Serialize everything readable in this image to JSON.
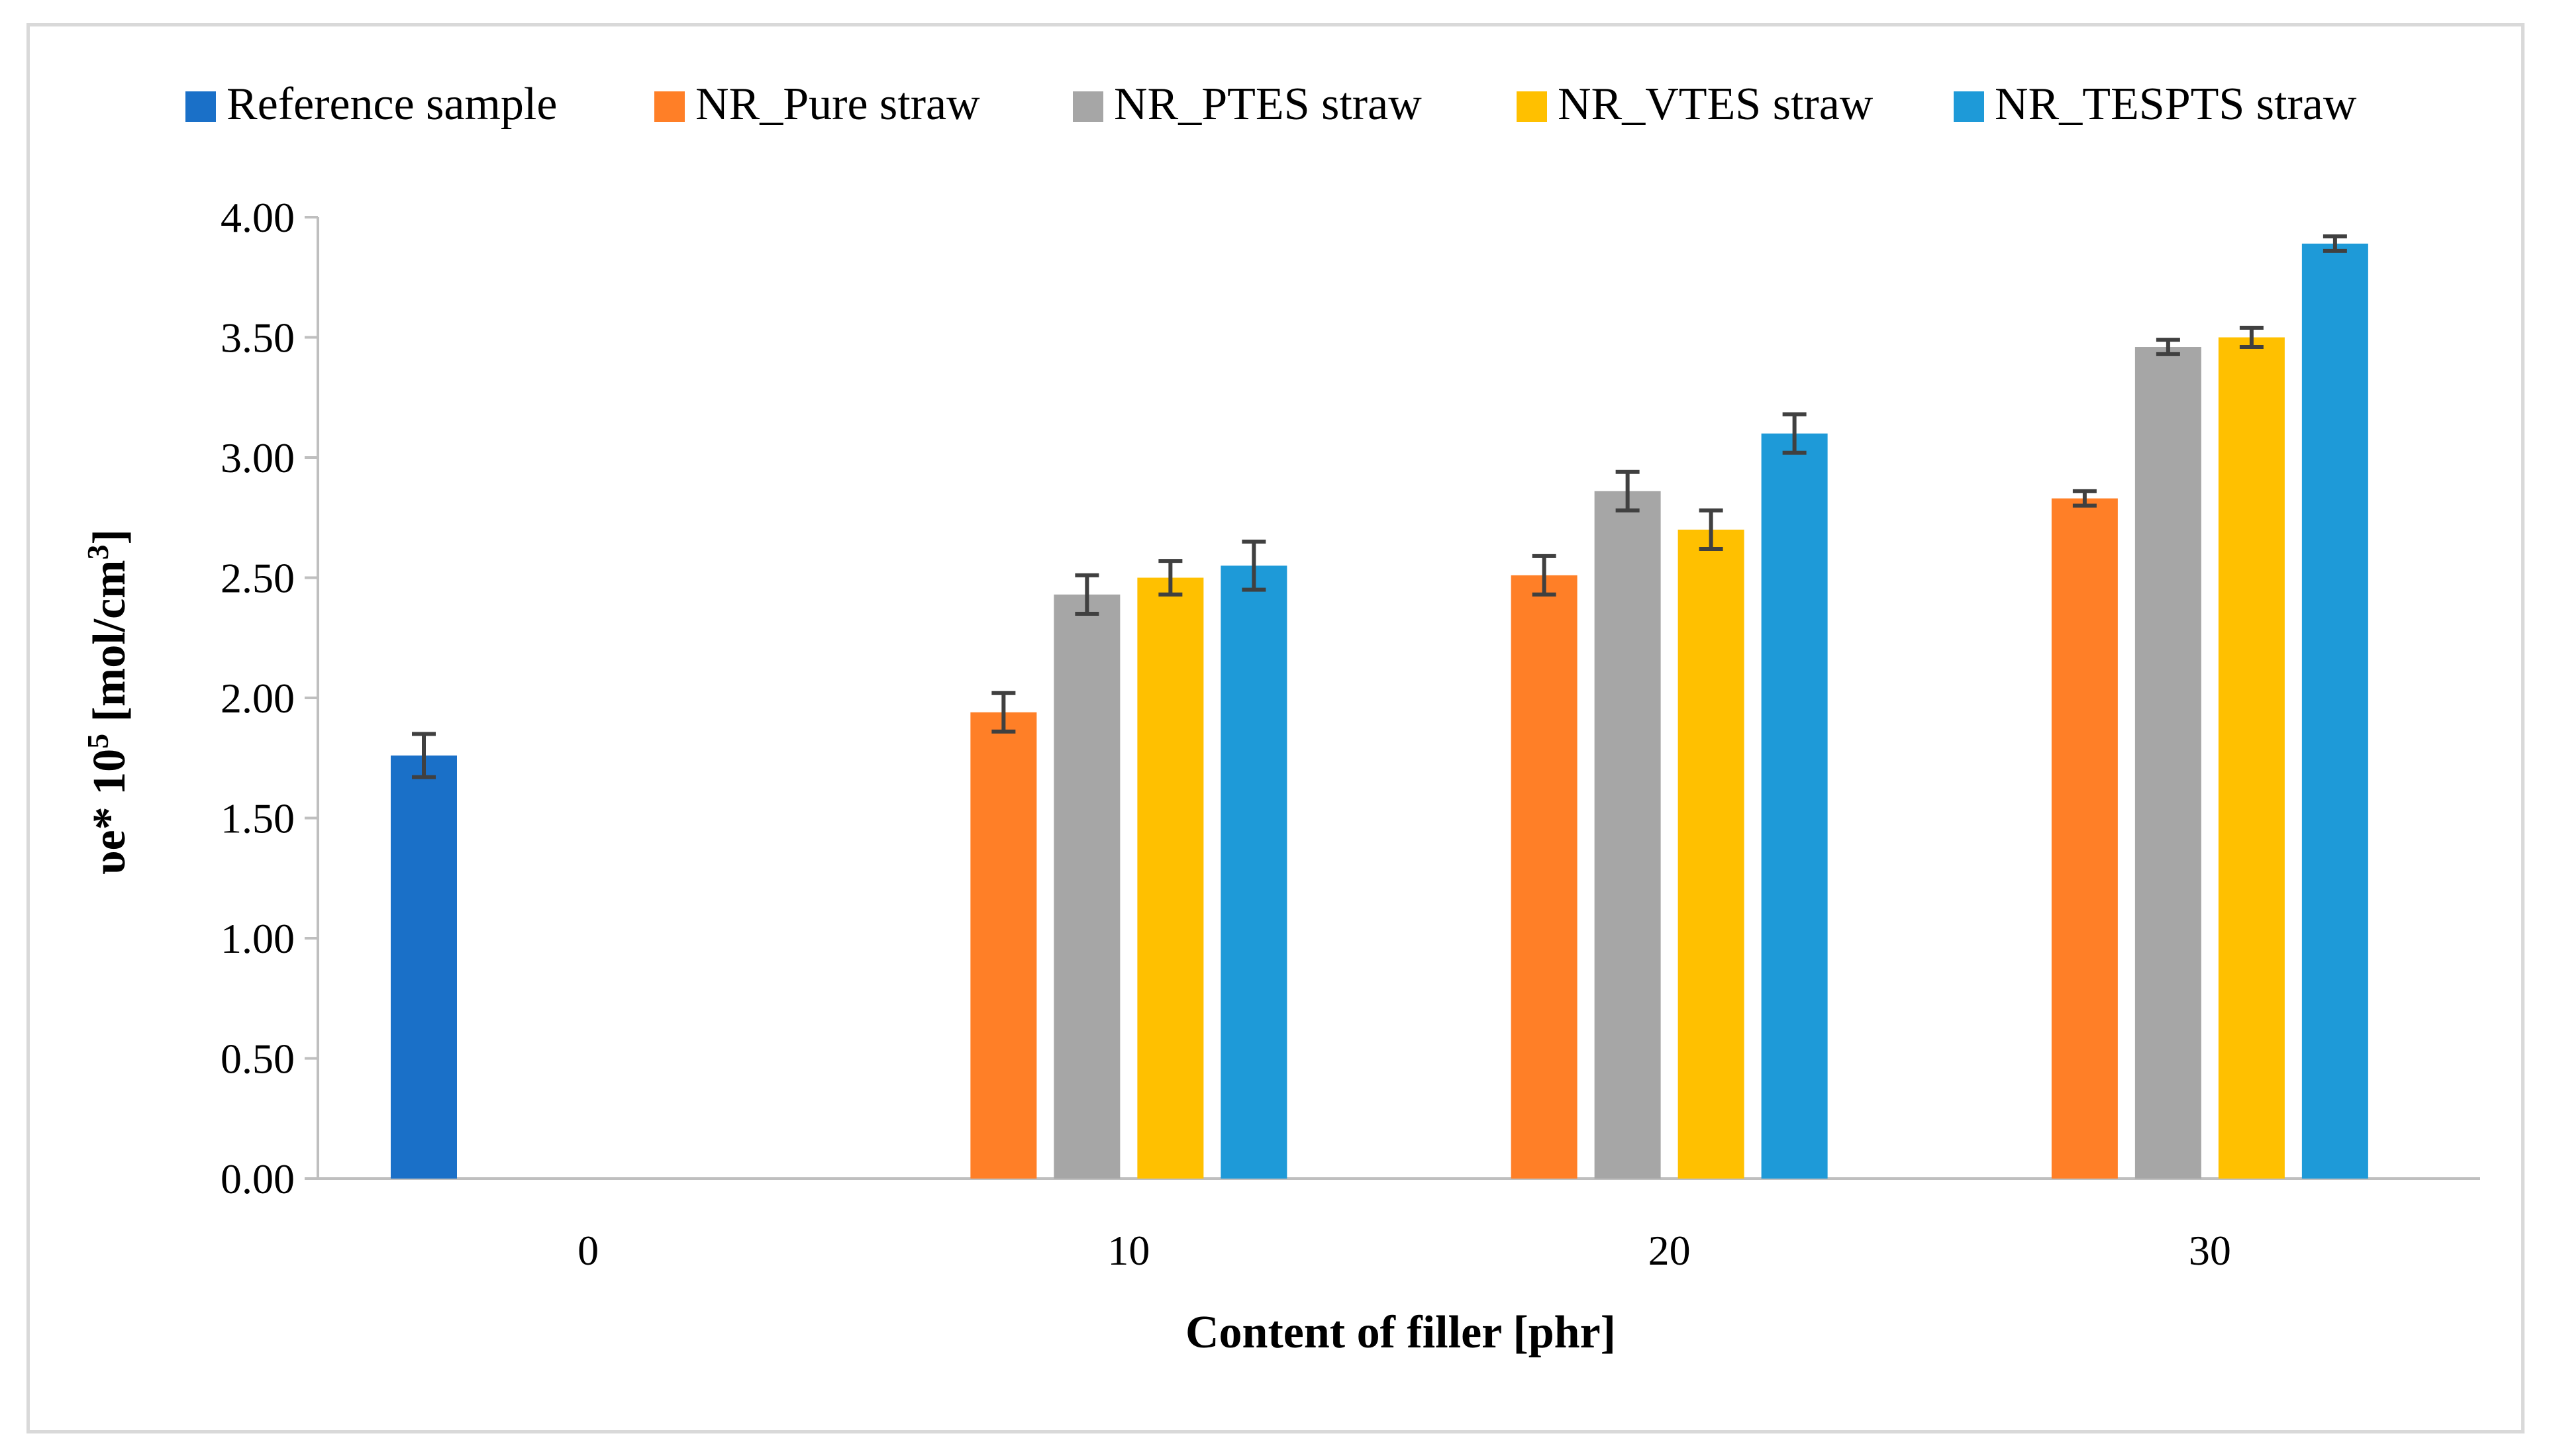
{
  "chart_data": {
    "type": "bar",
    "title": "",
    "xlabel": "Content of filler [phr]",
    "ylabel": {
      "main": "υe* 10",
      "sup": "5",
      "unit_a": " [mol/cm",
      "unit_sup": "3",
      "unit_b": "]"
    },
    "categories": [
      "0",
      "10",
      "20",
      "30"
    ],
    "ylim": [
      0,
      4
    ],
    "yticks": [
      "0.00",
      "0.50",
      "1.00",
      "1.50",
      "2.00",
      "2.50",
      "3.00",
      "3.50",
      "4.00"
    ],
    "grid": false,
    "legend_position": "top",
    "series": [
      {
        "name": "Reference sample",
        "color": "#1a70c8",
        "values": [
          1.76,
          null,
          null,
          null
        ],
        "errors": [
          0.09,
          null,
          null,
          null
        ]
      },
      {
        "name": "NR_Pure straw",
        "color": "#ff7f27",
        "values": [
          null,
          1.94,
          2.51,
          2.83
        ],
        "errors": [
          null,
          0.08,
          0.08,
          0.03
        ]
      },
      {
        "name": "NR_PTES straw",
        "color": "#a6a6a6",
        "values": [
          null,
          2.43,
          2.86,
          3.46
        ],
        "errors": [
          null,
          0.08,
          0.08,
          0.03
        ]
      },
      {
        "name": "NR_VTES straw",
        "color": "#ffc000",
        "values": [
          null,
          2.5,
          2.7,
          3.5
        ],
        "errors": [
          null,
          0.07,
          0.08,
          0.04
        ]
      },
      {
        "name": "NR_TESPTS straw",
        "color": "#1e9ad8",
        "values": [
          null,
          2.55,
          3.1,
          3.89
        ],
        "errors": [
          null,
          0.1,
          0.08,
          0.03
        ]
      }
    ]
  }
}
